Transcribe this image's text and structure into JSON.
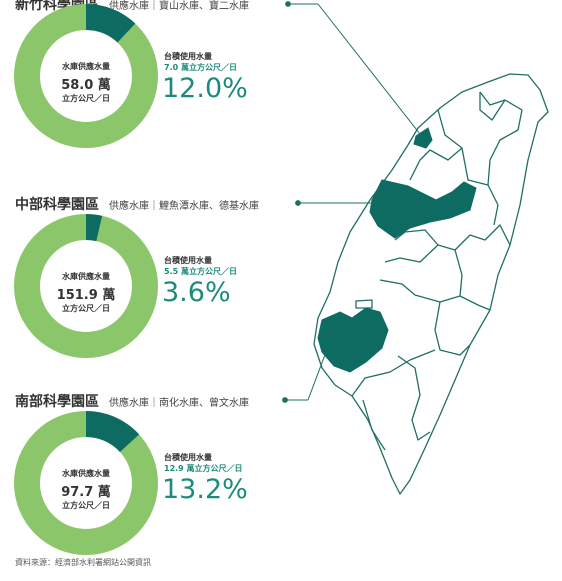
{
  "chart_data": [
    {
      "type": "pie",
      "name": "新竹科學園區",
      "sources": "供應水庫｜寶山水庫、寶二水庫",
      "supply_label": "水庫供應水量",
      "supply_value": "58.0 萬",
      "supply_unit": "立方公尺／日",
      "use_label": "台積使用水量",
      "use_amount": "7.0 萬立方公尺／日",
      "use_pct_label": "12.0%",
      "use_fraction": 0.12
    },
    {
      "type": "pie",
      "name": "中部科學園區",
      "sources": "供應水庫｜鯉魚潭水庫、德基水庫",
      "supply_label": "水庫供應水量",
      "supply_value": "151.9 萬",
      "supply_unit": "立方公尺／日",
      "use_label": "台積使用水量",
      "use_amount": "5.5 萬立方公尺／日",
      "use_pct_label": "3.6%",
      "use_fraction": 0.036
    },
    {
      "type": "pie",
      "name": "南部科學園區",
      "sources": "供應水庫｜南化水庫、曾文水庫",
      "supply_label": "水庫供應水量",
      "supply_value": "97.7 萬",
      "supply_unit": "立方公尺／日",
      "use_label": "台積使用水量",
      "use_amount": "12.9 萬立方公尺／日",
      "use_pct_label": "13.2%",
      "use_fraction": 0.132
    }
  ],
  "colors": {
    "used": "#0e6b62",
    "remaining": "#8cc66b",
    "accent_text": "#1a8b7d",
    "map_fill": "#0e6b62",
    "map_line": "#1f6f64"
  },
  "source_note": "資料來源：經濟部水利署網站公開資訊"
}
